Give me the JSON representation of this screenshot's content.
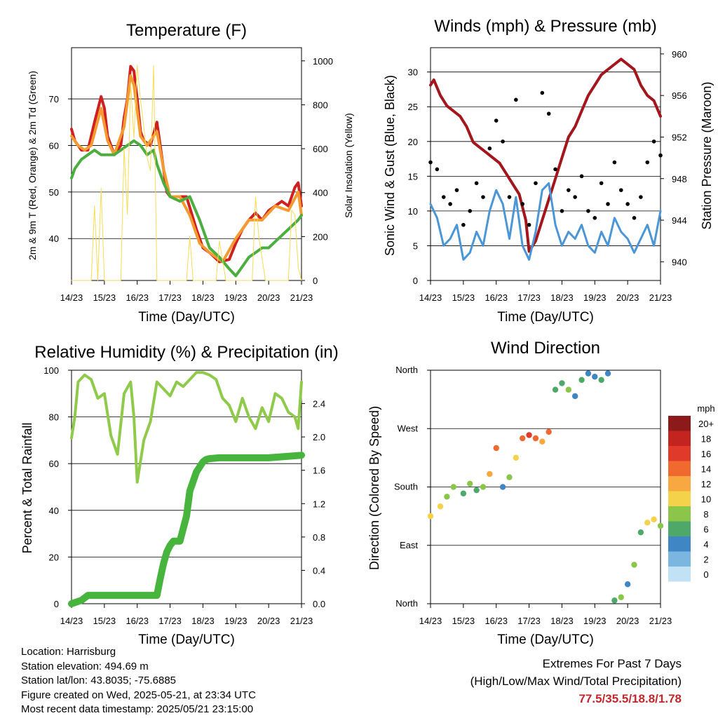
{
  "colors": {
    "temp_red": "#cf2020",
    "temp_orange": "#f59a30",
    "dewpoint_green": "#4bae3f",
    "solar_yellow": "#f7dc54",
    "pressure_maroon": "#a3161c",
    "wind_blue": "#4a96d6",
    "gust_black": "#000000",
    "rh_green": "#8fca4a",
    "precip_green": "#47b53d",
    "extremes_red": "#c3272b"
  },
  "charts": {
    "temperature": {
      "title": "Temperature (F)",
      "xlabel": "Time (Day/UTC)",
      "ylabel_left": "2m & 9m T (Red, Orange) & 2m Td (Green)",
      "ylabel_right": "Solar Insolation (Yellow)"
    },
    "winds": {
      "title": "Winds (mph) & Pressure (mb)",
      "xlabel": "Time (Day/UTC)",
      "ylabel_left": "Sonic Wind & Gust (Blue, Black)",
      "ylabel_right": "Station Pressure (Maroon)"
    },
    "humidity": {
      "title": "Relative Humidity (%) & Precipitation (in)",
      "xlabel": "Time (Day/UTC)",
      "ylabel_left": "Percent & Total Rainfall"
    },
    "direction": {
      "title": "Wind Direction",
      "xlabel": "Time (Day/UTC)",
      "ylabel_left": "Direction (Colored By Speed)",
      "legend_title": "mph"
    }
  },
  "chart_data": [
    {
      "type": "line",
      "title": "Temperature (F)",
      "x_ticks": [
        "14/23",
        "15/23",
        "16/23",
        "17/23",
        "18/23",
        "19/23",
        "20/23",
        "21/23"
      ],
      "xlim": [
        0,
        7
      ],
      "ylim": [
        31,
        81
      ],
      "yticks": [
        40,
        50,
        60,
        70
      ],
      "y2lim": [
        0,
        1060
      ],
      "y2ticks": [
        0,
        200,
        400,
        600,
        800,
        1000
      ],
      "series": [
        {
          "color": "#cf2020",
          "axis": "left",
          "x": [
            0,
            0.1,
            0.2,
            0.3,
            0.5,
            0.7,
            0.9,
            1.0,
            1.1,
            1.3,
            1.5,
            1.6,
            1.7,
            1.8,
            1.9,
            2.0,
            2.1,
            2.2,
            2.4,
            2.6,
            2.8,
            2.9,
            3.0,
            3.2,
            3.5,
            3.8,
            4.0,
            4.2,
            4.5,
            4.8,
            5.0,
            5.2,
            5.4,
            5.6,
            5.8,
            6.0,
            6.2,
            6.4,
            6.6,
            6.8,
            6.9,
            7.0
          ],
          "values": [
            63.5,
            61,
            60,
            59,
            59,
            65,
            70.5,
            68,
            62,
            58,
            60,
            66,
            70,
            77,
            76,
            70,
            63,
            61,
            60,
            65,
            55,
            50,
            49,
            49,
            49,
            42,
            38,
            37,
            35,
            35.5,
            39,
            42,
            44,
            45.5,
            44,
            46,
            47,
            48,
            47,
            51,
            52,
            47
          ]
        },
        {
          "color": "#f59a30",
          "axis": "left",
          "x": [
            0,
            0.2,
            0.4,
            0.6,
            0.9,
            1.1,
            1.3,
            1.6,
            1.8,
            1.9,
            2.1,
            2.3,
            2.6,
            2.8,
            3.0,
            3.3,
            3.6,
            3.9,
            4.2,
            4.6,
            5.0,
            5.4,
            5.8,
            6.2,
            6.6,
            6.9,
            7.0
          ],
          "values": [
            62,
            60,
            59,
            60,
            68,
            61,
            58,
            64,
            75,
            73,
            62,
            60,
            63,
            55,
            49,
            49,
            45,
            39,
            37,
            35,
            40,
            44,
            44,
            47,
            46,
            50,
            45
          ]
        },
        {
          "color": "#4bae3f",
          "axis": "left",
          "x": [
            0,
            0.1,
            0.3,
            0.5,
            0.7,
            0.9,
            1.1,
            1.3,
            1.5,
            1.7,
            1.9,
            2.1,
            2.3,
            2.5,
            2.6,
            2.7,
            2.8,
            3.0,
            3.3,
            3.6,
            3.9,
            4.2,
            4.5,
            4.8,
            5.0,
            5.2,
            5.4,
            5.6,
            5.8,
            6.0,
            6.3,
            6.6,
            6.9,
            7.0
          ],
          "values": [
            53,
            55,
            57,
            58,
            59,
            58,
            58,
            58,
            59,
            60,
            61,
            60,
            58,
            59,
            56,
            54,
            52,
            49,
            48,
            49,
            44,
            38,
            36,
            33.5,
            32,
            34,
            36,
            37,
            38,
            38,
            40,
            42,
            44,
            45
          ]
        },
        {
          "color": "#f7dc54",
          "axis": "right",
          "x": [
            0,
            0.6,
            0.7,
            0.8,
            0.9,
            1.0,
            1.2,
            1.5,
            1.6,
            1.7,
            1.8,
            1.9,
            2.0,
            2.1,
            2.2,
            2.3,
            2.4,
            2.5,
            2.6,
            2.7,
            2.8,
            3.0,
            3.3,
            3.5,
            3.6,
            3.7,
            3.9,
            4.2,
            4.4,
            4.5,
            4.7,
            4.9,
            5.3,
            5.5,
            5.6,
            5.7,
            5.9,
            6.2,
            6.6,
            6.7,
            6.8,
            6.9,
            7.0
          ],
          "values": [
            0,
            0,
            340,
            0,
            420,
            0,
            0,
            0,
            600,
            300,
            900,
            650,
            980,
            820,
            700,
            560,
            500,
            980,
            0,
            0,
            0,
            0,
            0,
            0,
            200,
            0,
            0,
            0,
            0,
            180,
            0,
            0,
            0,
            0,
            380,
            200,
            0,
            0,
            0,
            320,
            300,
            60,
            0
          ]
        }
      ]
    },
    {
      "type": "line",
      "title": "Winds (mph) & Pressure (mb)",
      "x_ticks": [
        "14/23",
        "15/23",
        "16/23",
        "17/23",
        "18/23",
        "19/23",
        "20/23",
        "21/23"
      ],
      "xlim": [
        0,
        7
      ],
      "ylim": [
        0,
        33.5
      ],
      "yticks": [
        0,
        5,
        10,
        15,
        20,
        25,
        30
      ],
      "y2lim": [
        938.2,
        960.6
      ],
      "y2ticks": [
        940,
        944,
        948,
        952,
        956,
        960
      ],
      "series": [
        {
          "color": "#a3161c",
          "axis": "right",
          "x": [
            0,
            0.1,
            0.3,
            0.5,
            0.7,
            0.9,
            1.1,
            1.3,
            1.5,
            1.7,
            1.9,
            2.1,
            2.3,
            2.5,
            2.7,
            2.9,
            3.0,
            3.2,
            3.4,
            3.6,
            3.8,
            4.0,
            4.2,
            4.4,
            4.6,
            4.8,
            5.0,
            5.2,
            5.4,
            5.6,
            5.8,
            6.0,
            6.2,
            6.4,
            6.6,
            6.8,
            7.0
          ],
          "values": [
            957,
            957.5,
            956,
            955,
            954.5,
            954,
            953,
            951.5,
            951,
            950.5,
            950,
            949.5,
            948.5,
            947.5,
            946.5,
            944,
            941,
            942,
            944,
            946,
            948,
            950,
            952,
            953,
            954.5,
            956,
            957,
            958,
            958.5,
            959,
            959.5,
            959,
            958.5,
            957,
            956,
            955.5,
            954
          ]
        },
        {
          "color": "#4a96d6",
          "axis": "left",
          "x": [
            0,
            0.2,
            0.4,
            0.6,
            0.8,
            1.0,
            1.2,
            1.4,
            1.6,
            1.8,
            2.0,
            2.2,
            2.4,
            2.6,
            2.8,
            3.0,
            3.2,
            3.4,
            3.6,
            3.8,
            4.0,
            4.2,
            4.4,
            4.6,
            4.8,
            5.0,
            5.2,
            5.4,
            5.6,
            5.8,
            6.0,
            6.2,
            6.4,
            6.6,
            6.8,
            7.0
          ],
          "values": [
            11,
            9,
            5,
            6,
            8,
            3,
            4,
            7,
            5,
            10,
            13,
            11,
            6,
            12,
            5,
            3,
            7,
            13,
            14,
            8,
            5,
            7,
            6,
            8,
            5,
            4,
            7,
            5,
            9,
            7,
            6,
            4,
            6,
            8,
            5,
            10
          ]
        },
        {
          "color": "#000000",
          "axis": "left",
          "kind": "points",
          "x": [
            0,
            0.2,
            0.4,
            0.6,
            0.8,
            1.0,
            1.2,
            1.4,
            1.6,
            1.8,
            2.0,
            2.2,
            2.4,
            2.6,
            2.8,
            3.0,
            3.2,
            3.4,
            3.6,
            3.8,
            4.0,
            4.2,
            4.4,
            4.6,
            4.8,
            5.0,
            5.2,
            5.4,
            5.6,
            5.8,
            6.0,
            6.2,
            6.4,
            6.6,
            6.8,
            7.0
          ],
          "values": [
            17,
            16,
            12,
            11,
            13,
            8,
            10,
            14,
            12,
            19,
            23,
            20,
            12,
            26,
            11,
            8,
            14,
            27,
            24,
            16,
            10,
            13,
            12,
            15,
            10,
            9,
            14,
            11,
            17,
            13,
            11,
            9,
            12,
            17,
            20,
            18
          ]
        }
      ]
    },
    {
      "type": "line",
      "title": "Relative Humidity (%) & Precipitation (in)",
      "x_ticks": [
        "14/23",
        "15/23",
        "16/23",
        "17/23",
        "18/23",
        "19/23",
        "20/23",
        "21/23"
      ],
      "xlim": [
        0,
        7
      ],
      "ylim": [
        0,
        100
      ],
      "yticks": [
        0,
        20,
        40,
        60,
        80,
        100
      ],
      "y2lim": [
        0,
        2.8
      ],
      "y2ticks": [
        "0.0",
        "0.4",
        "0.8",
        "1.2",
        "1.6",
        "2.0",
        "2.4"
      ],
      "series": [
        {
          "color": "#8fca4a",
          "axis": "left",
          "x": [
            0,
            0.1,
            0.2,
            0.4,
            0.6,
            0.8,
            1.0,
            1.2,
            1.4,
            1.6,
            1.8,
            1.9,
            2.0,
            2.2,
            2.4,
            2.6,
            2.8,
            3.0,
            3.2,
            3.4,
            3.6,
            3.8,
            4.0,
            4.2,
            4.4,
            4.6,
            4.8,
            5.0,
            5.2,
            5.4,
            5.6,
            5.8,
            6.0,
            6.2,
            6.4,
            6.6,
            6.8,
            6.9,
            7.0
          ],
          "values": [
            71,
            80,
            95,
            98,
            96,
            88,
            90,
            72,
            64,
            90,
            95,
            80,
            52,
            70,
            78,
            95,
            92,
            89,
            95,
            93,
            96,
            99,
            99,
            98,
            96,
            88,
            85,
            78,
            88,
            80,
            75,
            84,
            78,
            90,
            88,
            82,
            80,
            75,
            95
          ]
        },
        {
          "color": "#47b53d",
          "axis": "right",
          "x": [
            0,
            0.3,
            0.5,
            1.0,
            2.0,
            2.6,
            2.7,
            2.8,
            2.9,
            3.0,
            3.1,
            3.3,
            3.5,
            3.6,
            3.8,
            4.0,
            4.1,
            4.2,
            4.5,
            5.0,
            6.0,
            7.0
          ],
          "values": [
            0,
            0.04,
            0.1,
            0.1,
            0.1,
            0.1,
            0.3,
            0.48,
            0.62,
            0.7,
            0.75,
            0.75,
            1.05,
            1.35,
            1.58,
            1.7,
            1.73,
            1.74,
            1.75,
            1.75,
            1.75,
            1.78
          ]
        }
      ]
    },
    {
      "type": "scatter",
      "title": "Wind Direction",
      "x_ticks": [
        "14/23",
        "15/23",
        "16/23",
        "17/23",
        "18/23",
        "19/23",
        "20/23",
        "21/23"
      ],
      "xlim": [
        0,
        7
      ],
      "ylim": [
        0,
        360
      ],
      "yticks": [
        "North",
        "East",
        "South",
        "West",
        "North"
      ],
      "color_scale_mph": [
        "20+",
        "18",
        "16",
        "14",
        "12",
        "10",
        "8",
        "6",
        "4",
        "2",
        "0"
      ],
      "color_scale_colors": [
        "#8c1a1a",
        "#c42420",
        "#e03a2a",
        "#f06a30",
        "#f8a840",
        "#f4d24a",
        "#8bc64a",
        "#4ea86a",
        "#3e86c4",
        "#7ab6e0",
        "#c0e2f4"
      ],
      "x": [
        0,
        0.3,
        0.5,
        0.7,
        1.0,
        1.2,
        1.4,
        1.6,
        1.8,
        2.0,
        2.2,
        2.4,
        2.6,
        2.8,
        3.0,
        3.2,
        3.4,
        3.6,
        3.8,
        4.0,
        4.2,
        4.4,
        4.6,
        4.8,
        5.0,
        5.2,
        5.4,
        5.6,
        5.8,
        6.0,
        6.2,
        6.4,
        6.6,
        6.8,
        7.0
      ],
      "values": [
        135,
        150,
        165,
        180,
        170,
        185,
        175,
        180,
        200,
        240,
        180,
        195,
        225,
        255,
        260,
        255,
        250,
        265,
        330,
        340,
        330,
        320,
        345,
        355,
        350,
        345,
        355,
        5,
        10,
        30,
        60,
        110,
        125,
        130,
        120
      ],
      "speeds": [
        10,
        11,
        8,
        8,
        6,
        9,
        6,
        8,
        12,
        14,
        4,
        9,
        10,
        15,
        16,
        14,
        13,
        14,
        7,
        6,
        8,
        5,
        7,
        4,
        4,
        6,
        4,
        6,
        8,
        4,
        8,
        6,
        10,
        11,
        8
      ]
    }
  ],
  "info": {
    "location": "Location: Harrisburg",
    "elevation": "Station elevation: 494.69 m",
    "latlon": "Station lat/lon: 43.8035; -75.6885",
    "created": "Figure created on Wed, 2025-05-21, at 23:34 UTC",
    "recent": "Most recent data timestamp: 2025/05/21 23:15:00"
  },
  "extremes": {
    "title": "Extremes For Past 7 Days",
    "subtitle": "(High/Low/Max Wind/Total Precipitation)",
    "values": "77.5/35.5/18.8/1.78"
  }
}
